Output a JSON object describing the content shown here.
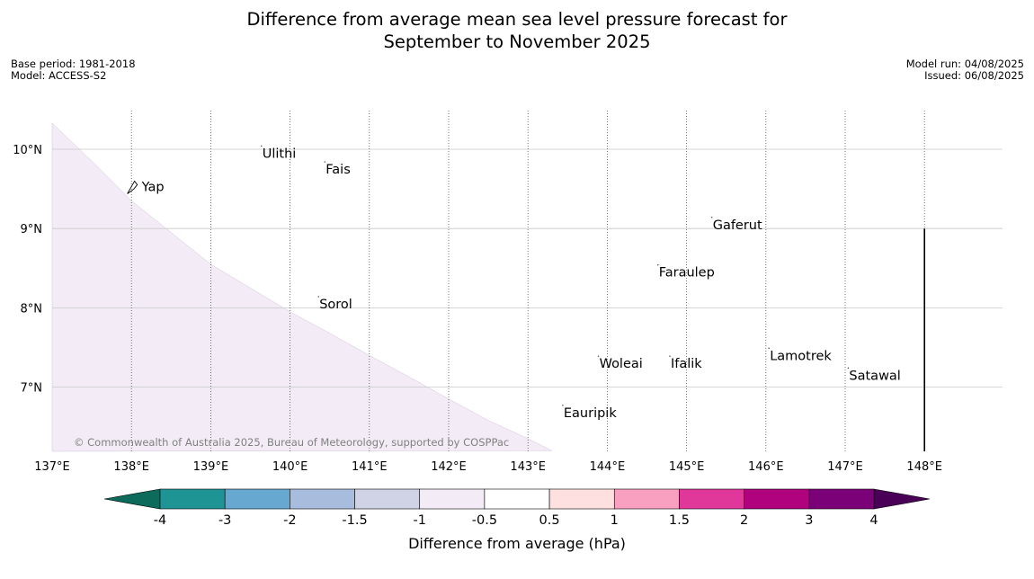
{
  "title": {
    "line1": "Difference from average mean sea level pressure forecast for",
    "line2": "September to November 2025"
  },
  "meta_left": {
    "base_period": "Base period: 1981-2018",
    "model": "Model: ACCESS-S2"
  },
  "meta_right": {
    "model_run": "Model run: 04/08/2025",
    "issued": "Issued: 06/08/2025"
  },
  "map": {
    "lon_range": [
      137,
      149
    ],
    "lat_range": [
      6.2,
      10.35
    ],
    "lon_ticks": [
      137,
      138,
      139,
      140,
      141,
      142,
      143,
      144,
      145,
      146,
      147,
      148
    ],
    "lon_labels": [
      "137°E",
      "138°E",
      "139°E",
      "140°E",
      "141°E",
      "142°E",
      "143°E",
      "144°E",
      "145°E",
      "146°E",
      "147°E",
      "148°E"
    ],
    "lat_ticks": [
      7,
      8,
      9,
      10
    ],
    "lat_labels": [
      "7°N",
      "8°N",
      "9°N",
      "10°N"
    ],
    "fill_color": "#f3ecf6",
    "anomaly_band": "-1 to -0.5",
    "anomaly_boundary": [
      {
        "lon": 137.0,
        "lat": 10.35
      },
      {
        "lon": 137.5,
        "lat": 9.85
      },
      {
        "lon": 138.0,
        "lat": 9.35
      },
      {
        "lon": 138.5,
        "lat": 8.95
      },
      {
        "lon": 139.0,
        "lat": 8.55
      },
      {
        "lon": 139.5,
        "lat": 8.25
      },
      {
        "lon": 140.0,
        "lat": 7.95
      },
      {
        "lon": 140.5,
        "lat": 7.68
      },
      {
        "lon": 141.0,
        "lat": 7.4
      },
      {
        "lon": 141.5,
        "lat": 7.13
      },
      {
        "lon": 142.0,
        "lat": 6.85
      },
      {
        "lon": 142.5,
        "lat": 6.58
      },
      {
        "lon": 143.0,
        "lat": 6.35
      },
      {
        "lon": 143.3,
        "lat": 6.2
      }
    ],
    "boundary_line": {
      "lon": 148.0,
      "lat_from": 6.2,
      "lat_to": 9.0
    },
    "places": [
      {
        "name": "Yap",
        "lon": 138.13,
        "lat": 9.53
      },
      {
        "name": "Ulithi",
        "lon": 139.65,
        "lat": 9.95
      },
      {
        "name": "Fais",
        "lon": 140.45,
        "lat": 9.75
      },
      {
        "name": "Gaferut",
        "lon": 145.33,
        "lat": 9.05
      },
      {
        "name": "Faraulep",
        "lon": 144.65,
        "lat": 8.45
      },
      {
        "name": "Sorol",
        "lon": 140.37,
        "lat": 8.05
      },
      {
        "name": "Woleai",
        "lon": 143.9,
        "lat": 7.3
      },
      {
        "name": "Ifalik",
        "lon": 144.8,
        "lat": 7.3
      },
      {
        "name": "Lamotrek",
        "lon": 146.05,
        "lat": 7.4
      },
      {
        "name": "Satawal",
        "lon": 147.05,
        "lat": 7.15
      },
      {
        "name": "Eauripik",
        "lon": 143.45,
        "lat": 6.68
      }
    ],
    "copyright": "© Commonwealth of Australia 2025, Bureau of Meteorology, supported by COSPPac"
  },
  "colorbar": {
    "label": "Difference from average (hPa)",
    "ticks": [
      "-4",
      "-3",
      "-2",
      "-1.5",
      "-1",
      "-0.5",
      "0.5",
      "1",
      "1.5",
      "2",
      "3",
      "4"
    ],
    "under_color": "#0c6b5a",
    "over_color": "#4a0057",
    "colors": [
      "#1f9494",
      "#66a8d0",
      "#a8bcdd",
      "#d0d2e6",
      "#f3ecf6",
      "#ffffff",
      "#fde0df",
      "#f99fc0",
      "#e0389a",
      "#b0017e",
      "#7a0177"
    ]
  }
}
